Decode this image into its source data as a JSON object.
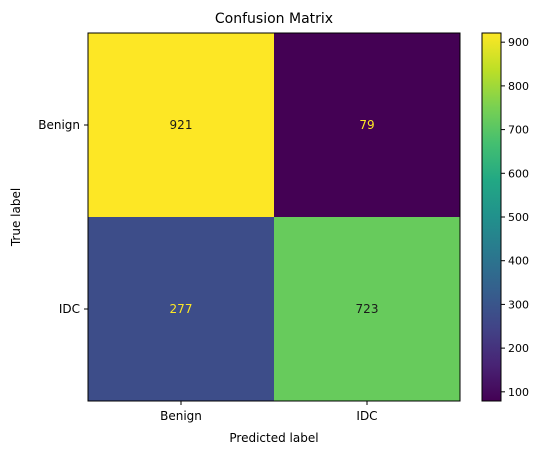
{
  "chart_data": {
    "type": "heatmap",
    "title": "Confusion Matrix",
    "xlabel": "Predicted label",
    "ylabel": "True label",
    "x_categories": [
      "Benign",
      "IDC"
    ],
    "y_categories": [
      "Benign",
      "IDC"
    ],
    "values": [
      [
        921,
        79
      ],
      [
        277,
        723
      ]
    ],
    "colormap": "viridis",
    "colorbar": {
      "vmin": 79,
      "vmax": 921,
      "ticks": [
        100,
        200,
        300,
        400,
        500,
        600,
        700,
        800,
        900
      ]
    },
    "grid": false,
    "text_colors": {
      "on_dark": "#fde725",
      "on_light": "#1a1a1a"
    }
  }
}
